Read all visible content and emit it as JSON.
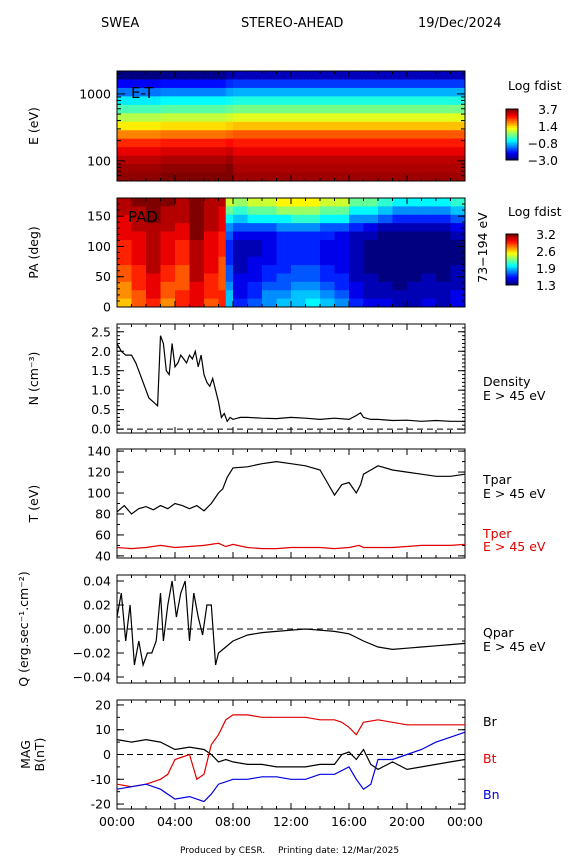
{
  "header": {
    "instrument": "SWEA",
    "spacecraft": "STEREO-AHEAD",
    "date": "19/Dec/2024"
  },
  "footer": {
    "credit": "Produced by CESR.",
    "printing": "Printing date: 12/Mar/2025"
  },
  "time_axis": {
    "ticks": [
      "00:00",
      "04:00",
      "08:00",
      "12:00",
      "16:00",
      "20:00",
      "00:00"
    ]
  },
  "colors": {
    "black_series": "#000000",
    "red_series": "#e00000",
    "blue_series": "#0000e0"
  },
  "chart_data": [
    {
      "type": "heatmap",
      "id": "et",
      "panel_label": "E-T",
      "ylabel": "E (eV)",
      "y_scale": "log",
      "ylim": [
        50,
        2200
      ],
      "y_ticks": [
        100,
        1000
      ],
      "y_tick_labels": [
        "100",
        "1000"
      ],
      "colorbar": {
        "title": "Log fdist",
        "ticks": [
          "3.7",
          "1.4",
          "−0.8",
          "−3.0"
        ],
        "range": [
          -3.0,
          3.7
        ]
      },
      "energy_channels_eV": [
        2000,
        1500,
        1100,
        800,
        600,
        450,
        330,
        240,
        180,
        130,
        95,
        70,
        55
      ],
      "hour_breaks": [
        0,
        3,
        7.5,
        8,
        24
      ],
      "log_fdist": [
        [
          -3.0,
          -2.9,
          -2.7,
          -2.6,
          -2.3
        ],
        [
          -2.2,
          -2.1,
          -1.9,
          -1.8,
          -1.6
        ],
        [
          -1.4,
          -1.3,
          -1.1,
          -1.0,
          -0.8
        ],
        [
          -0.6,
          -0.5,
          -0.4,
          -0.3,
          -0.1
        ],
        [
          0.0,
          0.1,
          0.2,
          0.3,
          0.4
        ],
        [
          0.7,
          0.8,
          0.9,
          1.0,
          1.1
        ],
        [
          1.3,
          1.4,
          1.5,
          1.6,
          1.7
        ],
        [
          2.0,
          2.1,
          2.2,
          2.3,
          2.2
        ],
        [
          2.6,
          2.7,
          2.8,
          2.7,
          2.6
        ],
        [
          3.0,
          3.1,
          3.2,
          3.0,
          2.9
        ],
        [
          3.3,
          3.4,
          3.5,
          3.3,
          3.2
        ],
        [
          3.5,
          3.6,
          3.7,
          3.4,
          3.3
        ],
        [
          3.6,
          3.7,
          3.7,
          3.5,
          3.4
        ]
      ]
    },
    {
      "type": "heatmap",
      "id": "pad",
      "panel_label": "PAD",
      "ylabel": "PA (deg)",
      "ylim": [
        0,
        180
      ],
      "y_ticks": [
        0,
        50,
        100,
        150
      ],
      "right_label": "73−194 eV",
      "colorbar": {
        "title": "Log fdist",
        "ticks": [
          "3.2",
          "2.6",
          "1.9",
          "1.3"
        ],
        "range": [
          1.3,
          3.2
        ]
      },
      "pa_bins_deg": [
        0,
        15,
        30,
        45,
        60,
        75,
        90,
        105,
        120,
        135,
        150,
        165,
        180
      ],
      "hours": [
        0,
        1,
        2,
        3,
        4,
        5,
        6,
        7,
        7.5,
        8,
        9,
        10,
        11,
        12,
        13,
        14,
        15,
        16,
        17,
        18,
        19,
        20,
        21,
        22,
        23,
        24
      ],
      "log_fdist": [
        [
          2.6,
          2.8,
          2.9,
          2.7,
          2.9,
          3.0,
          2.8,
          2.9,
          1.9,
          1.6,
          1.7,
          1.8,
          1.9,
          1.9,
          2.0,
          1.9,
          1.8,
          1.6,
          1.5,
          1.5,
          1.4,
          1.4,
          1.5,
          1.4,
          1.5
        ],
        [
          2.7,
          2.8,
          3.0,
          2.8,
          2.9,
          3.0,
          2.9,
          2.9,
          1.9,
          1.5,
          1.6,
          1.8,
          1.8,
          1.9,
          1.9,
          1.8,
          1.7,
          1.5,
          1.4,
          1.4,
          1.4,
          1.4,
          1.4,
          1.4,
          1.5
        ],
        [
          2.7,
          2.9,
          3.0,
          2.8,
          2.8,
          3.0,
          2.9,
          2.8,
          1.8,
          1.5,
          1.6,
          1.7,
          1.7,
          1.8,
          1.8,
          1.7,
          1.6,
          1.5,
          1.4,
          1.4,
          1.3,
          1.4,
          1.4,
          1.4,
          1.4
        ],
        [
          2.8,
          2.9,
          3.0,
          2.9,
          2.8,
          3.1,
          2.9,
          2.8,
          1.7,
          1.5,
          1.5,
          1.6,
          1.7,
          1.7,
          1.7,
          1.6,
          1.6,
          1.4,
          1.4,
          1.3,
          1.3,
          1.3,
          1.4,
          1.3,
          1.4
        ],
        [
          2.8,
          2.9,
          3.1,
          2.9,
          2.8,
          3.1,
          3.0,
          2.8,
          1.7,
          1.4,
          1.5,
          1.6,
          1.6,
          1.7,
          1.7,
          1.6,
          1.5,
          1.4,
          1.3,
          1.3,
          1.3,
          1.3,
          1.3,
          1.3,
          1.4
        ],
        [
          2.9,
          3.0,
          3.1,
          3.0,
          2.9,
          3.1,
          3.0,
          2.8,
          1.6,
          1.4,
          1.5,
          1.5,
          1.6,
          1.6,
          1.6,
          1.5,
          1.5,
          1.4,
          1.3,
          1.3,
          1.3,
          1.3,
          1.3,
          1.3,
          1.3
        ],
        [
          2.9,
          3.0,
          3.1,
          3.0,
          2.9,
          3.1,
          3.0,
          2.9,
          1.6,
          1.4,
          1.4,
          1.5,
          1.6,
          1.6,
          1.6,
          1.5,
          1.5,
          1.4,
          1.3,
          1.3,
          1.3,
          1.3,
          1.3,
          1.3,
          1.3
        ],
        [
          2.9,
          3.0,
          3.1,
          3.0,
          2.9,
          3.1,
          3.0,
          2.9,
          1.6,
          1.4,
          1.4,
          1.5,
          1.6,
          1.6,
          1.6,
          1.5,
          1.5,
          1.4,
          1.3,
          1.3,
          1.3,
          1.3,
          1.3,
          1.3,
          1.3
        ],
        [
          3.0,
          3.0,
          3.1,
          3.0,
          3.0,
          3.2,
          3.0,
          2.9,
          1.7,
          1.5,
          1.5,
          1.5,
          1.6,
          1.6,
          1.6,
          1.6,
          1.5,
          1.4,
          1.4,
          1.3,
          1.3,
          1.3,
          1.3,
          1.3,
          1.4
        ],
        [
          3.0,
          3.1,
          3.1,
          3.1,
          3.0,
          3.2,
          3.1,
          3.0,
          1.8,
          1.7,
          1.7,
          1.7,
          1.8,
          1.8,
          1.8,
          1.7,
          1.7,
          1.6,
          1.5,
          1.4,
          1.4,
          1.4,
          1.4,
          1.4,
          1.5
        ],
        [
          3.0,
          3.1,
          3.2,
          3.1,
          3.1,
          3.2,
          3.1,
          3.0,
          2.0,
          1.9,
          2.0,
          2.0,
          2.0,
          2.1,
          2.1,
          2.0,
          2.0,
          1.8,
          1.8,
          1.7,
          1.6,
          1.6,
          1.6,
          1.6,
          1.7
        ],
        [
          3.1,
          3.1,
          3.2,
          3.1,
          3.1,
          3.2,
          3.1,
          3.0,
          2.2,
          2.1,
          2.2,
          2.2,
          2.3,
          2.3,
          2.3,
          2.2,
          2.2,
          2.0,
          2.0,
          1.9,
          1.8,
          1.8,
          1.8,
          1.8,
          1.9
        ],
        [
          3.1,
          3.2,
          3.2,
          3.2,
          3.1,
          3.2,
          3.1,
          3.1,
          2.4,
          2.3,
          2.4,
          2.4,
          2.5,
          2.5,
          2.5,
          2.4,
          2.4,
          2.2,
          2.2,
          2.1,
          2.0,
          2.0,
          2.0,
          2.0,
          2.1
        ]
      ]
    },
    {
      "type": "line",
      "id": "density",
      "ylabel": "N (cm⁻³)",
      "ylim": [
        -0.1,
        2.7
      ],
      "y_ticks": [
        0.0,
        0.5,
        1.0,
        1.5,
        2.0,
        2.5
      ],
      "y_tick_labels": [
        "0.0",
        "0.5",
        "1.0",
        "1.5",
        "2.0",
        "2.5"
      ],
      "reference_line": 0,
      "right_labels": [
        "Density",
        "E > 45 eV"
      ],
      "series": [
        {
          "color": "#000000",
          "x": [
            0,
            0.3,
            0.6,
            1.0,
            1.3,
            1.6,
            2.0,
            2.2,
            2.5,
            2.8,
            3.0,
            3.2,
            3.4,
            3.6,
            3.8,
            4.0,
            4.2,
            4.4,
            4.6,
            4.8,
            5.0,
            5.2,
            5.4,
            5.6,
            5.8,
            6.0,
            6.2,
            6.4,
            6.6,
            6.8,
            7.0,
            7.2,
            7.4,
            7.6,
            7.8,
            8.0,
            8.5,
            9.0,
            10,
            11,
            12,
            13,
            14,
            15,
            16,
            16.5,
            16.8,
            17,
            17.5,
            18,
            19,
            20,
            21,
            22,
            23,
            24
          ],
          "y": [
            2.2,
            2.0,
            1.9,
            1.9,
            1.7,
            1.4,
            1.0,
            0.8,
            0.7,
            0.6,
            2.4,
            2.2,
            1.5,
            1.4,
            2.2,
            1.6,
            1.7,
            1.9,
            1.8,
            1.7,
            1.9,
            1.8,
            2.0,
            1.6,
            1.9,
            1.4,
            1.2,
            1.1,
            1.3,
            1.0,
            0.7,
            0.3,
            0.4,
            0.2,
            0.3,
            0.25,
            0.3,
            0.3,
            0.28,
            0.27,
            0.3,
            0.28,
            0.25,
            0.28,
            0.25,
            0.35,
            0.42,
            0.3,
            0.25,
            0.25,
            0.22,
            0.23,
            0.2,
            0.22,
            0.2,
            0.2
          ]
        }
      ]
    },
    {
      "type": "line",
      "id": "temperature",
      "ylabel": "T (eV)",
      "ylim": [
        38,
        142
      ],
      "y_ticks": [
        40,
        60,
        80,
        100,
        120,
        140
      ],
      "right_labels": [
        "Tpar",
        "E > 45 eV",
        "Tper",
        "E > 45 eV"
      ],
      "series": [
        {
          "name": "Tpar",
          "color": "#000000",
          "x": [
            0,
            0.5,
            1,
            1.5,
            2,
            2.5,
            3,
            3.5,
            4,
            4.5,
            5,
            5.5,
            6,
            6.5,
            7,
            7.3,
            7.6,
            8,
            9,
            10,
            11,
            12,
            13,
            14,
            14.5,
            15,
            15.5,
            16,
            16.5,
            16.8,
            17,
            17.5,
            18,
            19,
            20,
            21,
            22,
            23,
            24
          ],
          "y": [
            82,
            88,
            80,
            85,
            87,
            84,
            88,
            85,
            90,
            88,
            85,
            88,
            83,
            90,
            100,
            104,
            115,
            124,
            125,
            128,
            130,
            128,
            126,
            122,
            110,
            98,
            108,
            110,
            100,
            108,
            118,
            122,
            126,
            122,
            120,
            118,
            116,
            116,
            118
          ]
        },
        {
          "name": "Tper",
          "color": "#e00000",
          "x": [
            0,
            1,
            2,
            3,
            4,
            5,
            6,
            7,
            7.5,
            8,
            9,
            10,
            11,
            12,
            13,
            14,
            15,
            16,
            16.7,
            17,
            18,
            19,
            20,
            21,
            22,
            23,
            24
          ],
          "y": [
            48,
            47,
            48,
            50,
            48,
            49,
            50,
            52,
            49,
            51,
            48,
            47,
            47,
            48,
            48,
            48,
            47,
            48,
            50,
            48,
            48,
            48,
            49,
            50,
            50,
            50,
            51
          ]
        }
      ]
    },
    {
      "type": "line",
      "id": "heatflux",
      "ylabel": "Q (erg.sec⁻¹.cm⁻²)",
      "ylim": [
        -0.045,
        0.045
      ],
      "y_ticks": [
        -0.04,
        -0.02,
        0.0,
        0.02,
        0.04
      ],
      "y_tick_labels": [
        "−0.04",
        "−0.02",
        "0.00",
        "0.02",
        "0.04"
      ],
      "reference_line": 0,
      "right_labels": [
        "Qpar",
        "E > 45 eV"
      ],
      "series": [
        {
          "color": "#000000",
          "x": [
            0,
            0.3,
            0.6,
            0.9,
            1.2,
            1.5,
            1.8,
            2.1,
            2.4,
            2.7,
            3.0,
            3.2,
            3.5,
            3.8,
            4.1,
            4.4,
            4.7,
            5.0,
            5.3,
            5.6,
            5.9,
            6.2,
            6.5,
            6.8,
            7.0,
            7.5,
            8,
            9,
            10,
            11,
            12,
            13,
            14,
            15,
            16,
            17,
            18,
            19,
            20,
            21,
            22,
            23,
            24
          ],
          "y": [
            0.01,
            0.03,
            -0.01,
            0.02,
            -0.03,
            -0.01,
            -0.03,
            -0.02,
            -0.02,
            -0.01,
            0.03,
            -0.01,
            0.02,
            0.04,
            0.01,
            0.03,
            0.04,
            -0.01,
            0.03,
            0.01,
            -0.005,
            0.02,
            0.02,
            -0.03,
            -0.02,
            -0.015,
            -0.01,
            -0.005,
            -0.003,
            -0.002,
            -0.001,
            0.0,
            -0.001,
            -0.002,
            -0.004,
            -0.01,
            -0.015,
            -0.017,
            -0.016,
            -0.015,
            -0.014,
            -0.013,
            -0.012
          ]
        }
      ]
    },
    {
      "type": "line",
      "id": "mag",
      "ylabel": [
        "MAG",
        "B(nT)"
      ],
      "ylim": [
        -22,
        22
      ],
      "y_ticks": [
        -20,
        -10,
        0,
        10,
        20
      ],
      "reference_line": 0,
      "right_labels": [
        "Br",
        "Bt",
        "Bn"
      ],
      "series": [
        {
          "name": "Br",
          "color": "#000000",
          "x": [
            0,
            1,
            2,
            3,
            4,
            5,
            6,
            6.5,
            7,
            7.5,
            8,
            9,
            10,
            11,
            12,
            13,
            14,
            15,
            15.5,
            16,
            16.5,
            17,
            17.5,
            18,
            19,
            20,
            21,
            22,
            23,
            24
          ],
          "y": [
            6,
            5,
            6,
            5,
            2,
            3,
            2,
            0,
            -3,
            -2,
            -3,
            -4,
            -4,
            -5,
            -5,
            -5,
            -4,
            -4,
            0,
            1,
            -2,
            2,
            -4,
            -6,
            -3,
            -6,
            -5,
            -4,
            -3,
            -2
          ]
        },
        {
          "name": "Bt",
          "color": "#e00000",
          "x": [
            0,
            1,
            2,
            3,
            3.5,
            4,
            5,
            5.5,
            6,
            6.5,
            7,
            7.5,
            8,
            9,
            10,
            11,
            12,
            13,
            14,
            15,
            15.5,
            16,
            16.5,
            17,
            18,
            19,
            20,
            21,
            22,
            23,
            24
          ],
          "y": [
            -12,
            -13,
            -12,
            -10,
            -8,
            -2,
            0,
            -10,
            -8,
            4,
            8,
            14,
            16,
            16,
            15,
            15,
            15,
            15,
            14,
            14,
            13,
            11,
            8,
            13,
            14,
            13,
            12,
            12,
            12,
            12,
            12
          ]
        },
        {
          "name": "Bn",
          "color": "#0000e0",
          "x": [
            0,
            1,
            2,
            3,
            4,
            5,
            6,
            6.5,
            7,
            8,
            9,
            10,
            11,
            12,
            13,
            14,
            15,
            16,
            16.5,
            17,
            17.5,
            18,
            19,
            20,
            21,
            22,
            23,
            24
          ],
          "y": [
            -14,
            -13,
            -12,
            -14,
            -18,
            -17,
            -19,
            -16,
            -12,
            -10,
            -10,
            -9,
            -9,
            -10,
            -10,
            -8,
            -8,
            -5,
            -10,
            -14,
            -12,
            -2,
            -2,
            0,
            2,
            5,
            7,
            9
          ]
        }
      ]
    }
  ]
}
